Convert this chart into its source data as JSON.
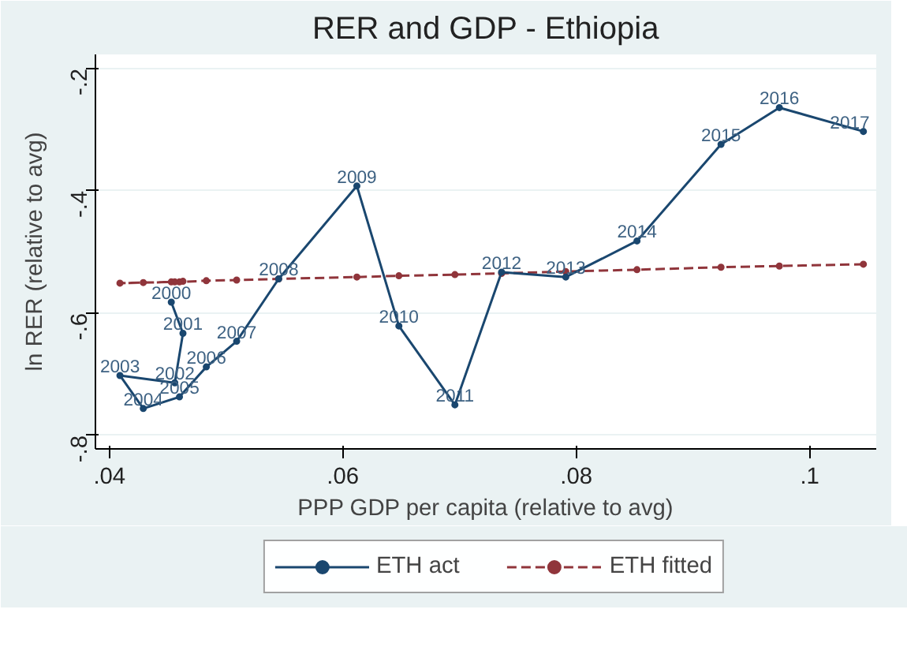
{
  "chart_data": {
    "type": "line",
    "title": "RER and GDP - Ethiopia",
    "xlabel": "PPP GDP per capita (relative to avg)",
    "ylabel": "ln RER (relative to avg)",
    "xlim": [
      0.0388,
      0.1057
    ],
    "ylim": [
      -0.822,
      -0.177
    ],
    "xticks": [
      {
        "value": 0.04,
        "label": ".04"
      },
      {
        "value": 0.06,
        "label": ".06"
      },
      {
        "value": 0.08,
        "label": ".08"
      },
      {
        "value": 0.1,
        "label": ".1"
      }
    ],
    "yticks": [
      {
        "value": -0.8,
        "label": "-.8"
      },
      {
        "value": -0.6,
        "label": "-.6"
      },
      {
        "value": -0.4,
        "label": "-.4"
      },
      {
        "value": -0.2,
        "label": "-.2"
      }
    ],
    "grid": "y",
    "legend": "bottom",
    "marker": "circle",
    "series": [
      {
        "name": "ETH act",
        "color": "#1a476f",
        "line_style": "solid",
        "x": [
          0.0453,
          0.0463,
          0.0456,
          0.0409,
          0.0429,
          0.046,
          0.0483,
          0.0509,
          0.0545,
          0.0612,
          0.0648,
          0.0696,
          0.0736,
          0.0791,
          0.0852,
          0.0924,
          0.0974,
          0.1046
        ],
        "values": [
          -0.582,
          -0.633,
          -0.714,
          -0.702,
          -0.756,
          -0.737,
          -0.688,
          -0.646,
          -0.544,
          -0.392,
          -0.621,
          -0.75,
          -0.533,
          -0.541,
          -0.482,
          -0.324,
          -0.264,
          -0.303
        ]
      },
      {
        "name": "ETH fitted",
        "color": "#90353b",
        "line_style": "dashed",
        "x": [
          0.0453,
          0.0463,
          0.0456,
          0.0409,
          0.0429,
          0.046,
          0.0483,
          0.0509,
          0.0545,
          0.0612,
          0.0648,
          0.0696,
          0.0736,
          0.0791,
          0.0852,
          0.0924,
          0.0974,
          0.1046
        ],
        "values": [
          -0.549,
          -0.548,
          -0.549,
          -0.551,
          -0.55,
          -0.549,
          -0.547,
          -0.546,
          -0.544,
          -0.541,
          -0.539,
          -0.537,
          -0.535,
          -0.532,
          -0.529,
          -0.525,
          -0.523,
          -0.52
        ]
      }
    ],
    "annotations": [
      {
        "text": "2000",
        "x": 0.0453,
        "y": -0.582
      },
      {
        "text": "2001",
        "x": 0.0463,
        "y": -0.633
      },
      {
        "text": "2002",
        "x": 0.0456,
        "y": -0.714
      },
      {
        "text": "2003",
        "x": 0.0409,
        "y": -0.702
      },
      {
        "text": "2004",
        "x": 0.0429,
        "y": -0.756
      },
      {
        "text": "2005",
        "x": 0.046,
        "y": -0.737
      },
      {
        "text": "2006",
        "x": 0.0483,
        "y": -0.688
      },
      {
        "text": "2007",
        "x": 0.0509,
        "y": -0.646
      },
      {
        "text": "2008",
        "x": 0.0545,
        "y": -0.544
      },
      {
        "text": "2009",
        "x": 0.0612,
        "y": -0.392
      },
      {
        "text": "2010",
        "x": 0.0648,
        "y": -0.621
      },
      {
        "text": "2011",
        "x": 0.0696,
        "y": -0.75
      },
      {
        "text": "2012",
        "x": 0.0736,
        "y": -0.533
      },
      {
        "text": "2013",
        "x": 0.0791,
        "y": -0.541
      },
      {
        "text": "2014",
        "x": 0.0852,
        "y": -0.482
      },
      {
        "text": "2015",
        "x": 0.0924,
        "y": -0.324
      },
      {
        "text": "2016",
        "x": 0.0974,
        "y": -0.264
      },
      {
        "text": "2017",
        "x": 0.1046,
        "y": -0.303
      }
    ]
  }
}
